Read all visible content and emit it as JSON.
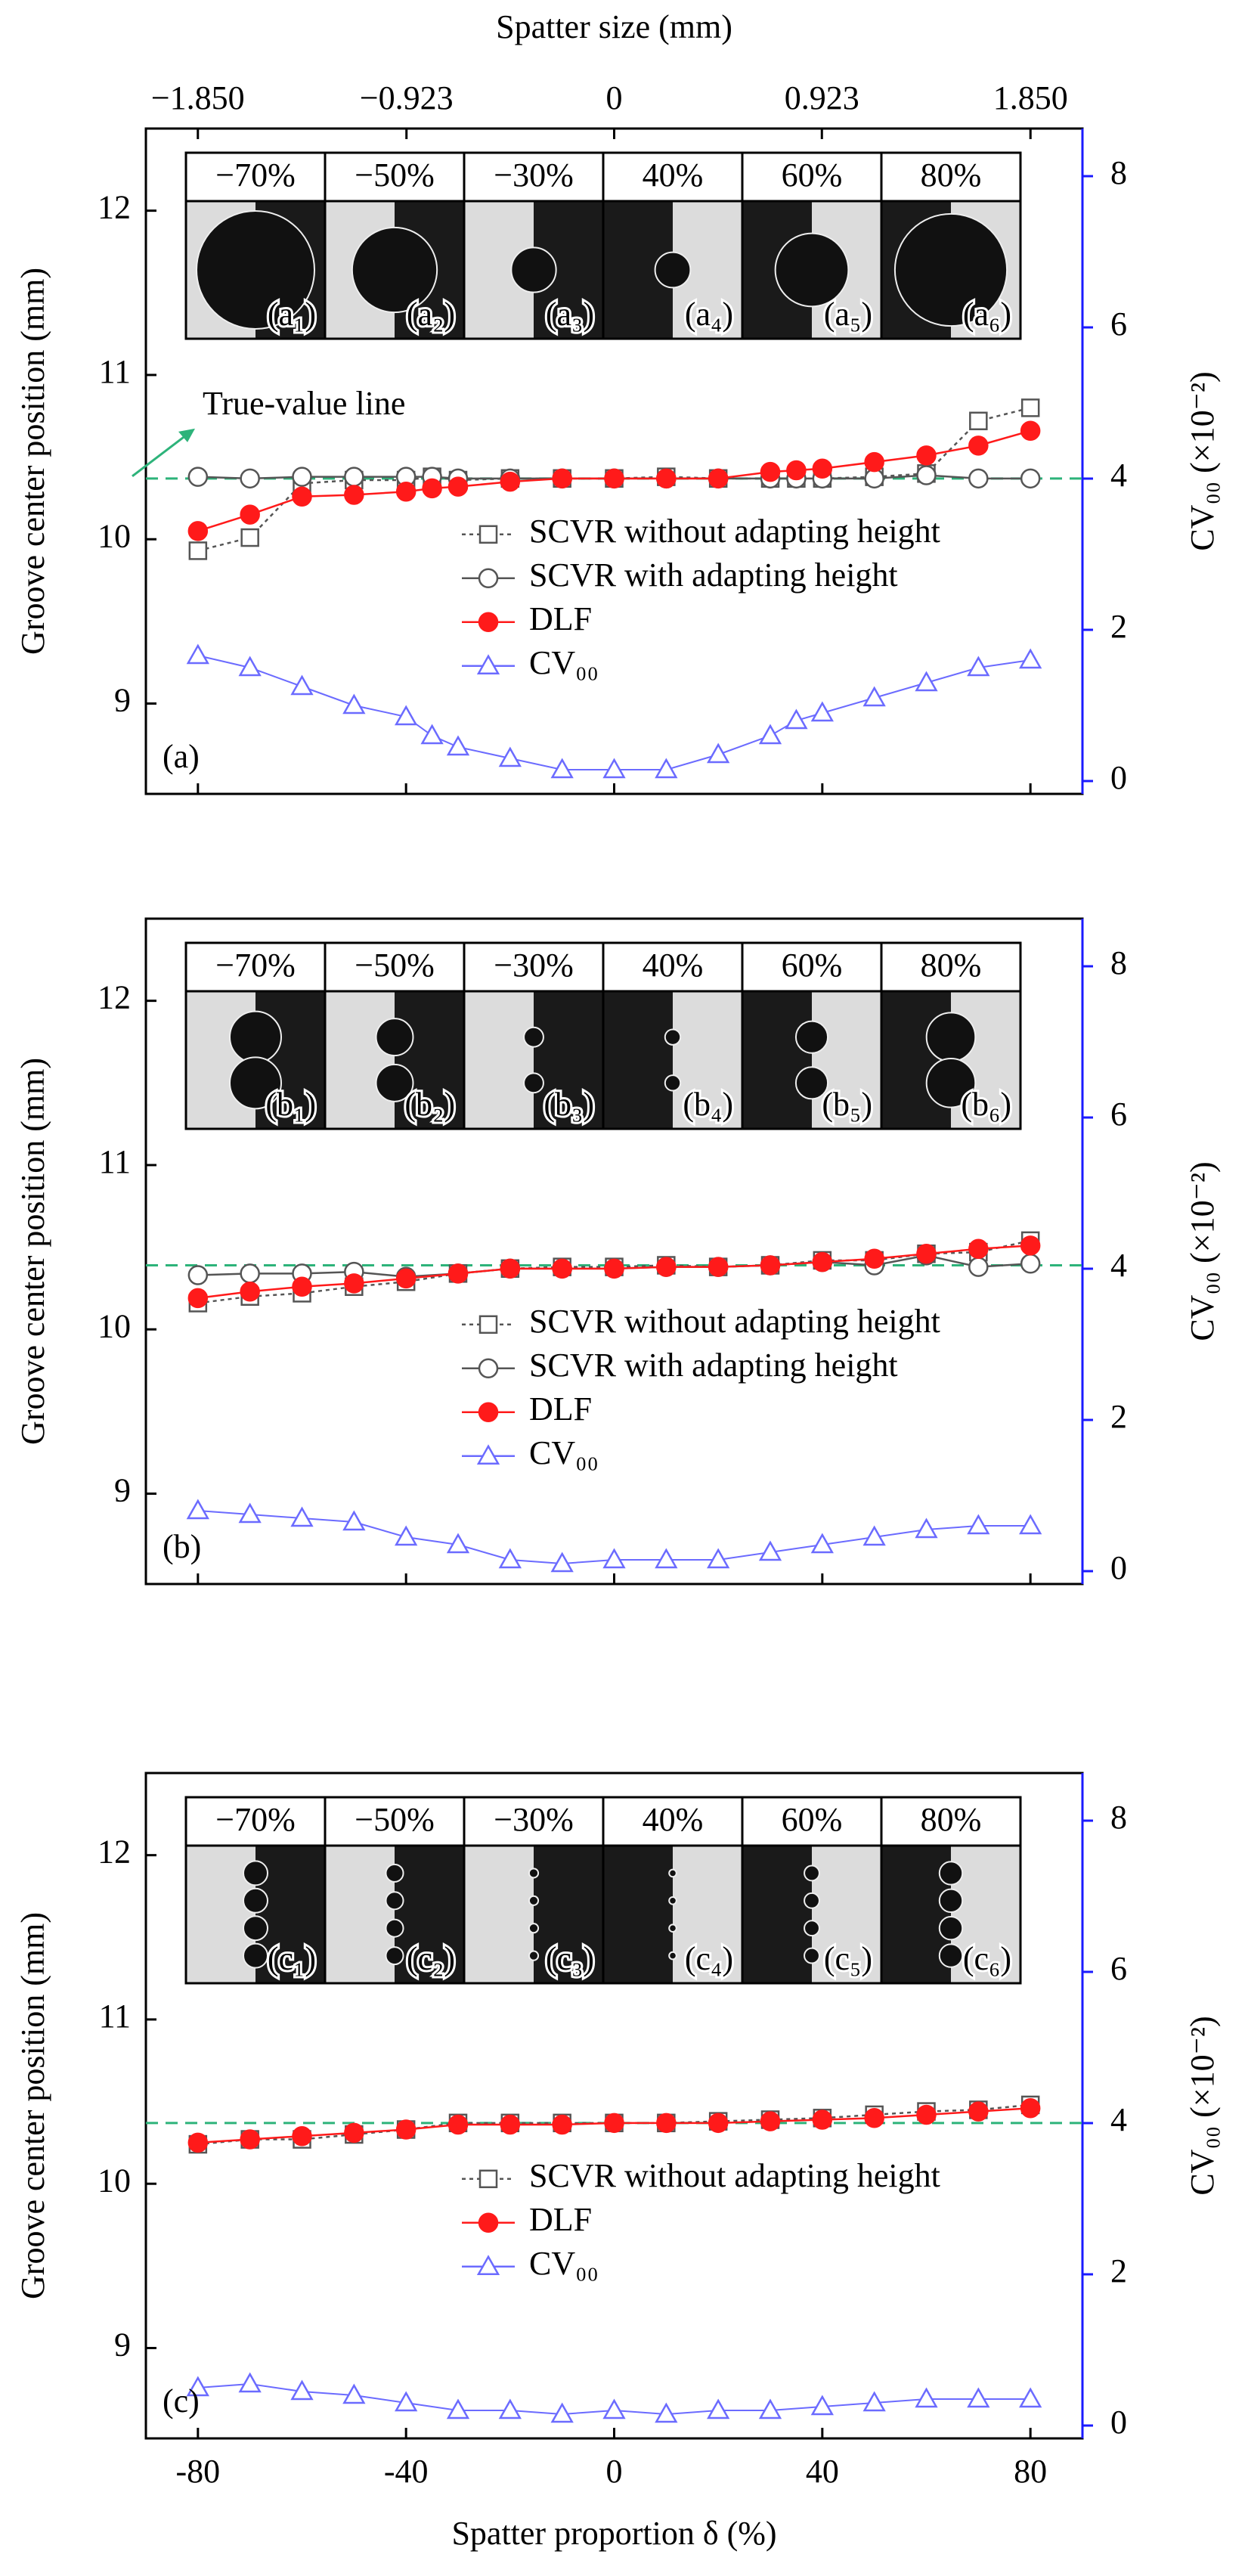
{
  "chart_data": [
    {
      "type": "line",
      "panel_label": "(a)",
      "x2label": "Spatter size (mm)",
      "x2lim": [
        -2.081,
        2.081
      ],
      "x2ticks": [
        {
          "value": -1.85,
          "label": "−1.850"
        },
        {
          "value": -0.923,
          "label": "−0.923"
        },
        0,
        {
          "value": 0.923,
          "label": "0.923"
        },
        {
          "value": 1.85,
          "label": "1.850"
        }
      ],
      "x": [
        -80,
        -70,
        -60,
        -50,
        -40,
        -35,
        -30,
        -20,
        -10,
        0,
        10,
        20,
        30,
        35,
        40,
        50,
        60,
        70,
        80
      ],
      "xlim": [
        -90,
        90
      ],
      "xticks": [
        -80,
        -40,
        0,
        40,
        80
      ],
      "ylabel": "Groove center position (mm)",
      "ylim": [
        8.45,
        12.5
      ],
      "yticks": [
        9,
        10,
        11,
        12
      ],
      "y2label": "CV₀₀ (×10⁻²)",
      "y2lim": [
        -0.17,
        8.63
      ],
      "y2ticks": [
        0,
        2,
        4,
        6,
        8
      ],
      "reference_line": {
        "value": 10.37,
        "color": "#2db37a",
        "label": "True-value line"
      },
      "inset": {
        "headers": [
          "−70%",
          "−50%",
          "−30%",
          "40%",
          "60%",
          "80%"
        ],
        "labels": [
          "(a₁)",
          "(a₂)",
          "(a₃)",
          "(a₄)",
          "(a₅)",
          "(a₆)"
        ]
      },
      "series": [
        {
          "name": "SCVR without adapting height",
          "color": "#555555",
          "marker": "square",
          "dash": true,
          "values": [
            9.93,
            10.01,
            10.34,
            10.36,
            10.36,
            10.38,
            10.36,
            10.37,
            10.37,
            10.37,
            10.38,
            10.37,
            10.37,
            10.37,
            10.37,
            10.38,
            10.4,
            10.72,
            10.8
          ]
        },
        {
          "name": "SCVR with adapting height",
          "color": "#555555",
          "marker": "circle",
          "dash": false,
          "values": [
            10.38,
            10.37,
            10.38,
            10.38,
            10.38,
            10.38,
            10.37,
            10.37,
            10.37,
            10.37,
            10.37,
            10.37,
            10.37,
            10.37,
            10.37,
            10.37,
            10.39,
            10.37,
            10.37
          ]
        },
        {
          "name": "DLF",
          "color": "#ff1a1a",
          "marker": "dot",
          "dash": false,
          "values": [
            10.05,
            10.15,
            10.26,
            10.27,
            10.29,
            10.31,
            10.32,
            10.35,
            10.37,
            10.37,
            10.37,
            10.37,
            10.41,
            10.42,
            10.43,
            10.47,
            10.51,
            10.57,
            10.66
          ]
        },
        {
          "name": "CV₀₀",
          "color": "#6b6bff",
          "marker": "triangle",
          "dash": false,
          "axis": "y2",
          "values": [
            1.66,
            1.5,
            1.25,
            1.0,
            0.85,
            0.6,
            0.45,
            0.3,
            0.15,
            0.15,
            0.15,
            0.35,
            0.6,
            0.8,
            0.9,
            1.1,
            1.3,
            1.5,
            1.6
          ]
        }
      ]
    },
    {
      "type": "line",
      "panel_label": "(b)",
      "x": [
        -80,
        -70,
        -60,
        -50,
        -40,
        -30,
        -20,
        -10,
        0,
        10,
        20,
        30,
        40,
        50,
        60,
        70,
        80
      ],
      "xlim": [
        -90,
        90
      ],
      "xticks": [
        -80,
        -40,
        0,
        40,
        80
      ],
      "ylabel": "Groove center position (mm)",
      "ylim": [
        8.45,
        12.5
      ],
      "yticks": [
        9,
        10,
        11,
        12
      ],
      "y2label": "CV₀₀ (×10⁻²)",
      "y2lim": [
        -0.17,
        8.63
      ],
      "y2ticks": [
        0,
        2,
        4,
        6,
        8
      ],
      "reference_line": {
        "value": 10.39,
        "color": "#2db37a"
      },
      "inset": {
        "headers": [
          "−70%",
          "−50%",
          "−30%",
          "40%",
          "60%",
          "80%"
        ],
        "labels": [
          "(b₁)",
          "(b₂)",
          "(b₃)",
          "(b₄)",
          "(b₅)",
          "(b₆)"
        ]
      },
      "series": [
        {
          "name": "SCVR without adapting height",
          "color": "#555555",
          "marker": "square",
          "dash": true,
          "values": [
            10.16,
            10.2,
            10.22,
            10.26,
            10.29,
            10.34,
            10.37,
            10.38,
            10.38,
            10.39,
            10.38,
            10.39,
            10.42,
            10.42,
            10.46,
            10.47,
            10.54
          ]
        },
        {
          "name": "SCVR with adapting height",
          "color": "#555555",
          "marker": "circle",
          "dash": false,
          "values": [
            10.33,
            10.34,
            10.34,
            10.35,
            10.32,
            10.34,
            10.37,
            10.37,
            10.37,
            10.38,
            10.38,
            10.39,
            10.41,
            10.39,
            10.45,
            10.38,
            10.4
          ]
        },
        {
          "name": "DLF",
          "color": "#ff1a1a",
          "marker": "dot",
          "dash": false,
          "values": [
            10.19,
            10.23,
            10.26,
            10.28,
            10.31,
            10.34,
            10.37,
            10.37,
            10.37,
            10.38,
            10.38,
            10.39,
            10.41,
            10.43,
            10.46,
            10.49,
            10.51
          ]
        },
        {
          "name": "CV₀₀",
          "color": "#6b6bff",
          "marker": "triangle",
          "dash": false,
          "axis": "y2",
          "values": [
            0.8,
            0.75,
            0.7,
            0.65,
            0.45,
            0.35,
            0.15,
            0.1,
            0.15,
            0.15,
            0.15,
            0.25,
            0.35,
            0.45,
            0.55,
            0.6,
            0.6
          ]
        }
      ]
    },
    {
      "type": "line",
      "panel_label": "(c)",
      "x": [
        -80,
        -70,
        -60,
        -50,
        -40,
        -30,
        -20,
        -10,
        0,
        10,
        20,
        30,
        40,
        50,
        60,
        70,
        80
      ],
      "xlabel": "Spatter proportion δ (%)",
      "xlim": [
        -90,
        90
      ],
      "xticks": [
        -80,
        -40,
        0,
        40,
        80
      ],
      "ylabel": "Groove center position (mm)",
      "ylim": [
        8.45,
        12.5
      ],
      "yticks": [
        9,
        10,
        11,
        12
      ],
      "y2label": "CV₀₀ (×10⁻²)",
      "y2lim": [
        -0.17,
        8.63
      ],
      "y2ticks": [
        0,
        2,
        4,
        6,
        8
      ],
      "reference_line": {
        "value": 10.37,
        "color": "#2db37a"
      },
      "inset": {
        "headers": [
          "−70%",
          "−50%",
          "−30%",
          "40%",
          "60%",
          "80%"
        ],
        "labels": [
          "(c₁)",
          "(c₂)",
          "(c₃)",
          "(c₄)",
          "(c₅)",
          "(c₆)"
        ]
      },
      "series": [
        {
          "name": "SCVR without adapting height",
          "color": "#555555",
          "marker": "square",
          "dash": true,
          "values": [
            10.24,
            10.27,
            10.27,
            10.3,
            10.33,
            10.37,
            10.37,
            10.37,
            10.37,
            10.37,
            10.38,
            10.39,
            10.4,
            10.42,
            10.44,
            10.45,
            10.48
          ]
        },
        {
          "name": "DLF",
          "color": "#ff1a1a",
          "marker": "dot",
          "dash": false,
          "values": [
            10.25,
            10.27,
            10.29,
            10.31,
            10.33,
            10.36,
            10.36,
            10.36,
            10.37,
            10.37,
            10.37,
            10.38,
            10.39,
            10.4,
            10.42,
            10.44,
            10.46
          ]
        },
        {
          "name": "CV₀₀",
          "color": "#6b6bff",
          "marker": "triangle",
          "dash": false,
          "axis": "y2",
          "values": [
            0.5,
            0.55,
            0.45,
            0.4,
            0.3,
            0.2,
            0.2,
            0.15,
            0.2,
            0.15,
            0.2,
            0.2,
            0.25,
            0.3,
            0.35,
            0.35,
            0.35
          ]
        }
      ]
    }
  ]
}
